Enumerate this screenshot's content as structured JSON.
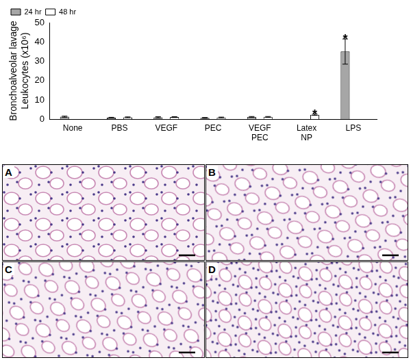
{
  "chart_data": {
    "type": "bar",
    "y_label": [
      "Bronchoalveolar lavage",
      "Leukocytes (x10⁶)"
    ],
    "categories": [
      "None",
      "PBS",
      "VEGF",
      "PEC",
      "VEGF PEC",
      "Latex NP",
      "LPS"
    ],
    "series": [
      {
        "name": "24 hr",
        "color": "#a6a6a6",
        "values": [
          1.3,
          0.8,
          1.0,
          0.7,
          1.2,
          null,
          35
        ],
        "errors": [
          0.3,
          0.2,
          0.3,
          0.2,
          0.2,
          null,
          6.5
        ]
      },
      {
        "name": "48 hr",
        "color": "#ffffff",
        "values": [
          null,
          1.0,
          1.1,
          0.9,
          1.2,
          2.3,
          null
        ],
        "errors": [
          null,
          0.2,
          0.2,
          0.2,
          0.2,
          0.3,
          null
        ]
      }
    ],
    "annotations": [
      {
        "category": "Latex NP",
        "series": "48 hr",
        "text": "*"
      },
      {
        "category": "LPS",
        "series": "24 hr",
        "text": "*"
      }
    ],
    "ylim": [
      0,
      50
    ],
    "yticks": [
      0,
      10,
      20,
      30,
      40,
      50
    ],
    "grid": false,
    "legend": "upper-left"
  },
  "panels": [
    "A",
    "B",
    "C",
    "D"
  ]
}
